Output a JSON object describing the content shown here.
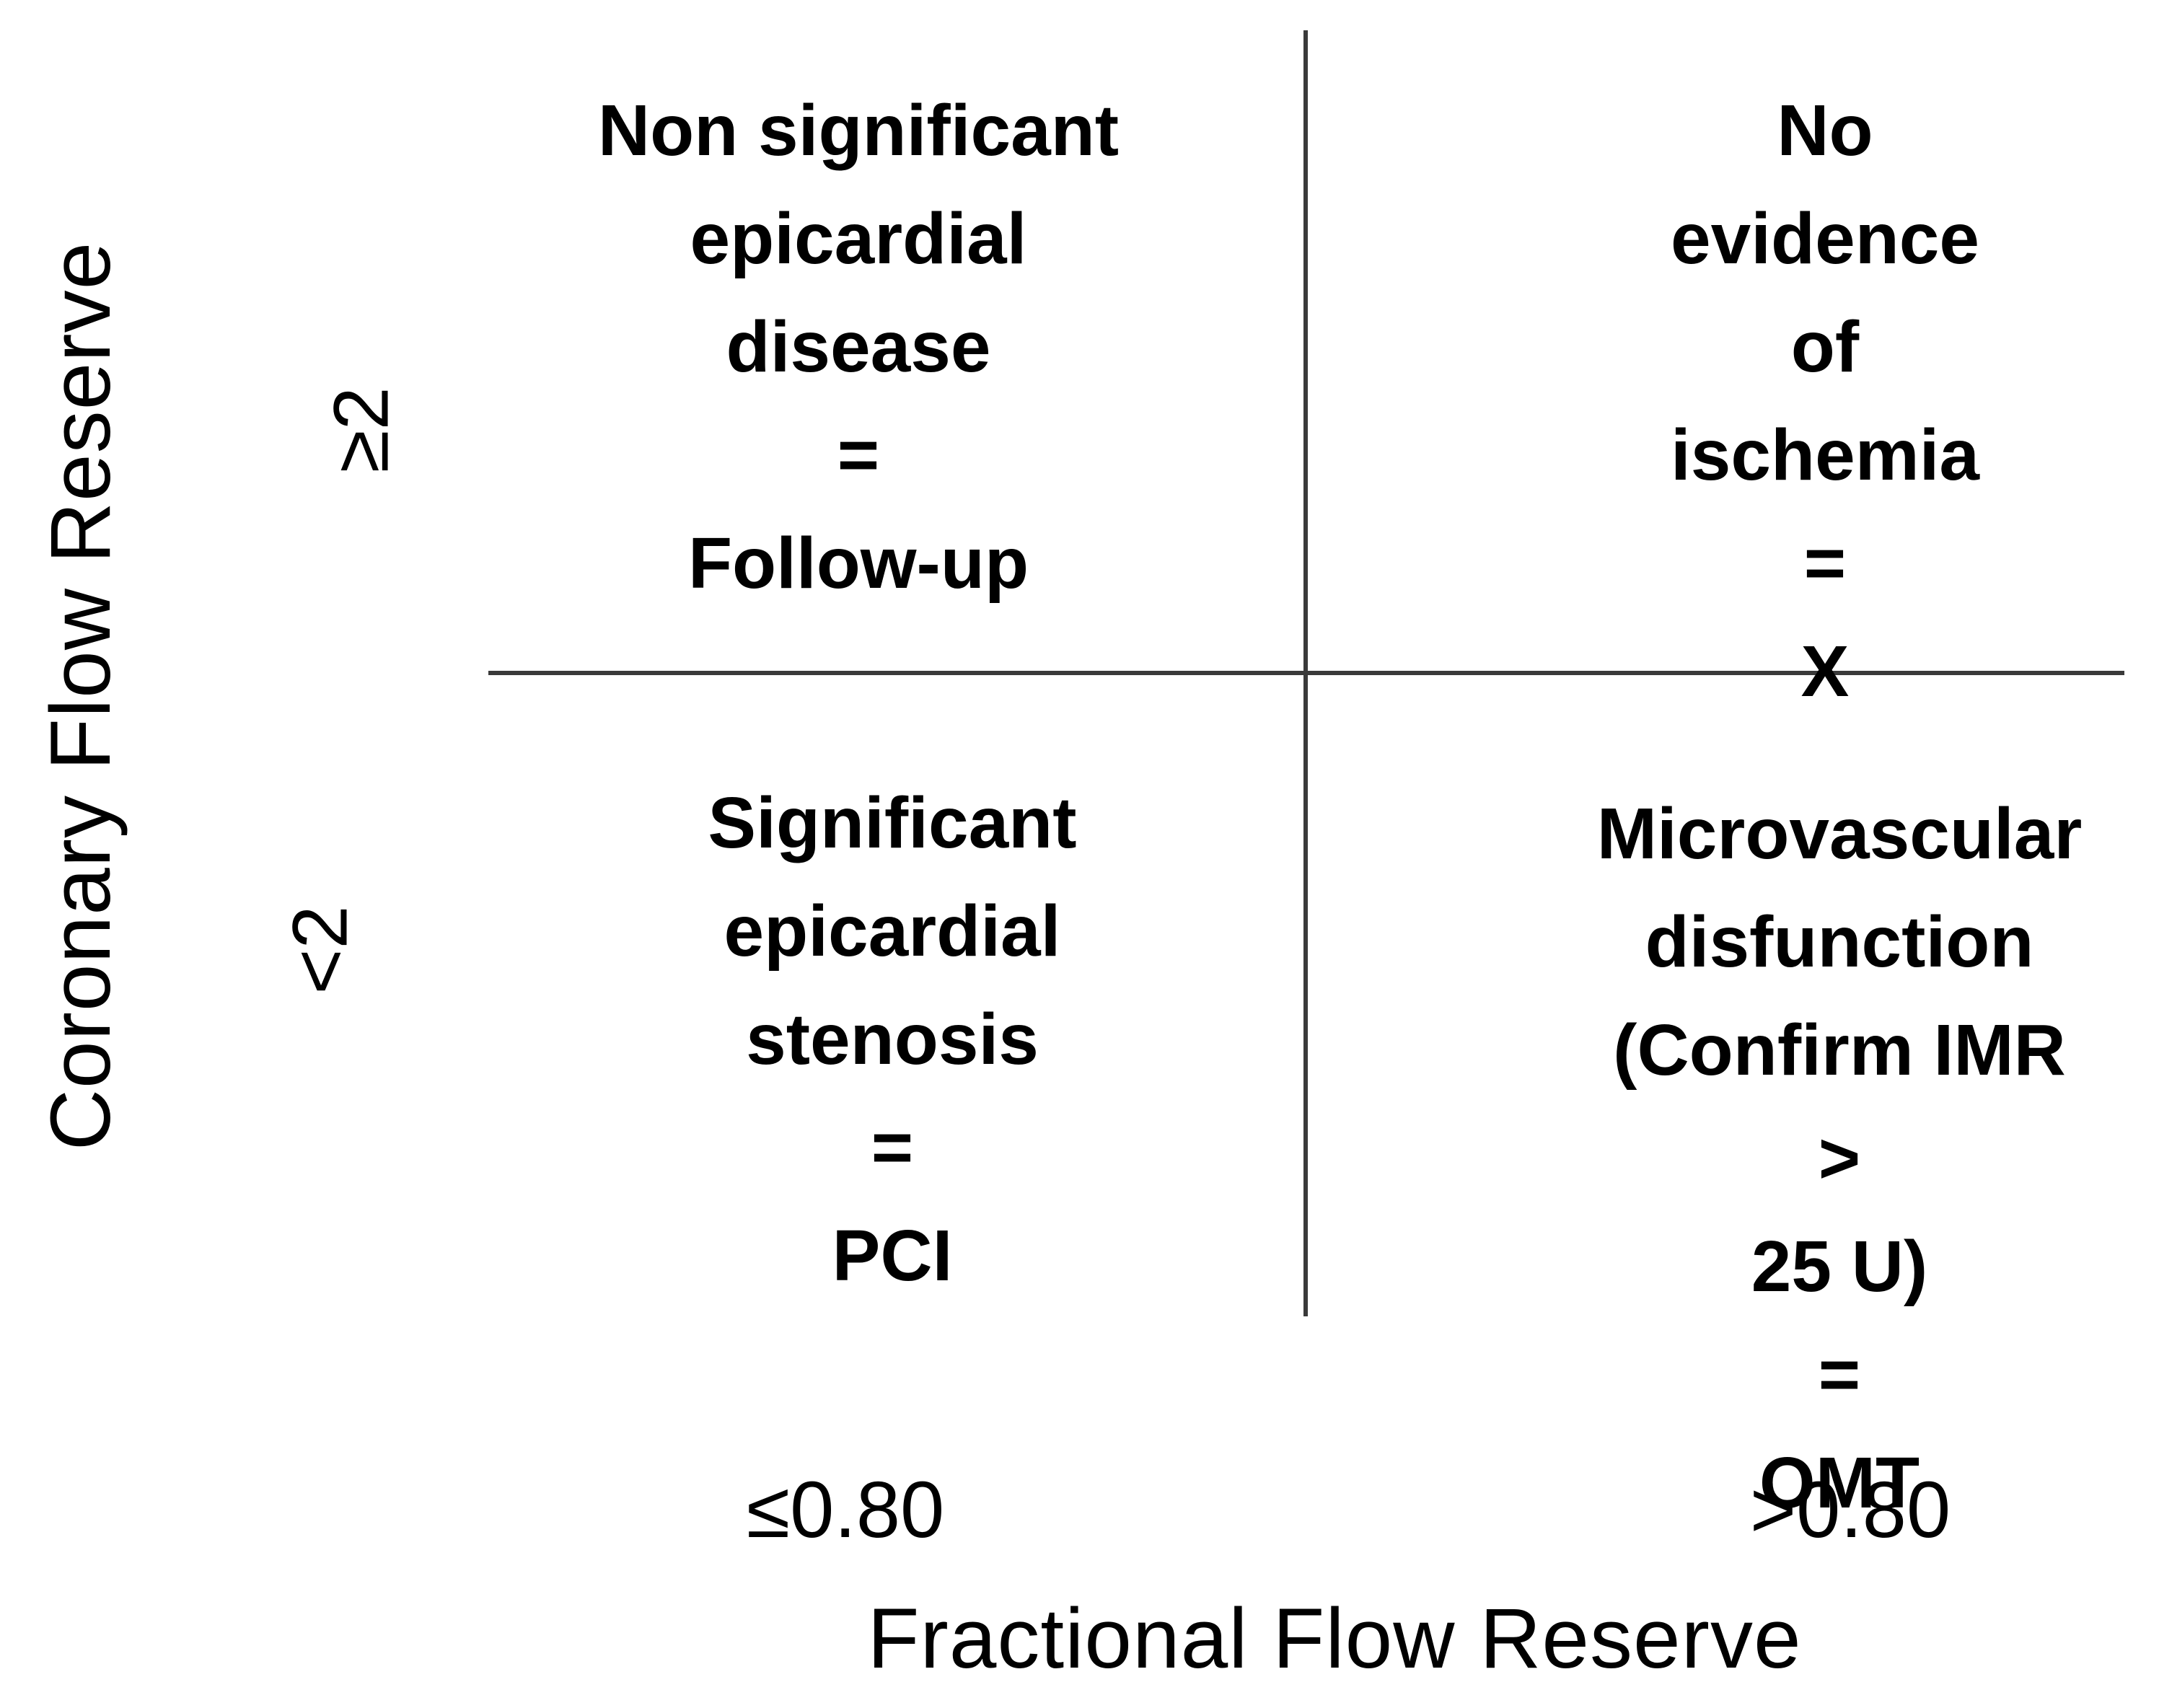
{
  "figure": {
    "y_axis": {
      "title": "Coronary Flow Reserve",
      "tick_upper": "≥2",
      "tick_lower": "<2"
    },
    "x_axis": {
      "title": "Fractional Flow Reserve",
      "tick_left": "≤0.80",
      "tick_right": ">0.80"
    },
    "quadrants": {
      "top_left": {
        "label": "Non significant\nepicardial\ndisease\n=\nFollow-up"
      },
      "top_right": {
        "label": "No evidence of\nischemia\n=\nX"
      },
      "bottom_left": {
        "label": "Significant\nepicardial\nstenosis\n=\nPCI"
      },
      "bottom_right": {
        "label": "Microvascular\ndisfunction\n(Confirm IMR >\n25 U)\n=\nOMT"
      }
    },
    "line_color": "#3a3a3a",
    "text_color": "#000000"
  },
  "chart_data": {
    "type": "table",
    "title": "",
    "xlabel": "Fractional Flow Reserve",
    "ylabel": "Coronary Flow Reserve",
    "x_categories": [
      "≤0.80",
      ">0.80"
    ],
    "y_categories": [
      "≥2",
      "<2"
    ],
    "cells": [
      [
        "Non significant epicardial disease = Follow-up",
        "No evidence of ischemia = X"
      ],
      [
        "Significant epicardial stenosis = PCI",
        "Microvascular disfunction (Confirm IMR > 25 U) = OMT"
      ]
    ],
    "grid": "quadrant dividers only",
    "legend": "none"
  }
}
